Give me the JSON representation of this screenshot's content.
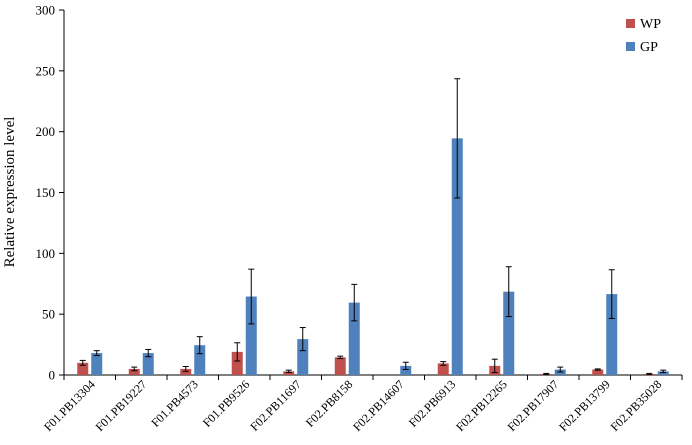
{
  "chart_data": {
    "type": "bar",
    "title": "",
    "xlabel": "",
    "ylabel": "Relative expression level",
    "ylim": [
      0,
      300
    ],
    "yticks": [
      0,
      50,
      100,
      150,
      200,
      250,
      300
    ],
    "grid": false,
    "legend_position": "top-right",
    "categories": [
      "F01.PB13304",
      "F01.PB19227",
      "F01.PB4573",
      "F01.PB9526",
      "F02.PB11697",
      "F02.PB8158",
      "F02.PB14607",
      "F02.PB6913",
      "F02.PB12265",
      "F02.PB17907",
      "F02.PB13799",
      "F02.PB35028"
    ],
    "series": [
      {
        "name": "WP",
        "color": "#c0504d",
        "values": [
          10,
          5,
          5,
          19,
          3,
          14.5,
          0,
          9.5,
          7.5,
          0.8,
          4.5,
          0.8
        ],
        "errors": [
          2,
          1.5,
          2,
          7.5,
          1,
          1,
          0,
          1.5,
          5.5,
          0.5,
          0.5,
          0.5
        ]
      },
      {
        "name": "GP",
        "color": "#4f81bd",
        "values": [
          18,
          18,
          24.5,
          64.5,
          29.5,
          59.5,
          7.5,
          194.5,
          68.5,
          4.5,
          66.5,
          3
        ],
        "errors": [
          2,
          3,
          7,
          22.5,
          9.5,
          15,
          3,
          49,
          20.5,
          2,
          20,
          1
        ]
      }
    ]
  }
}
